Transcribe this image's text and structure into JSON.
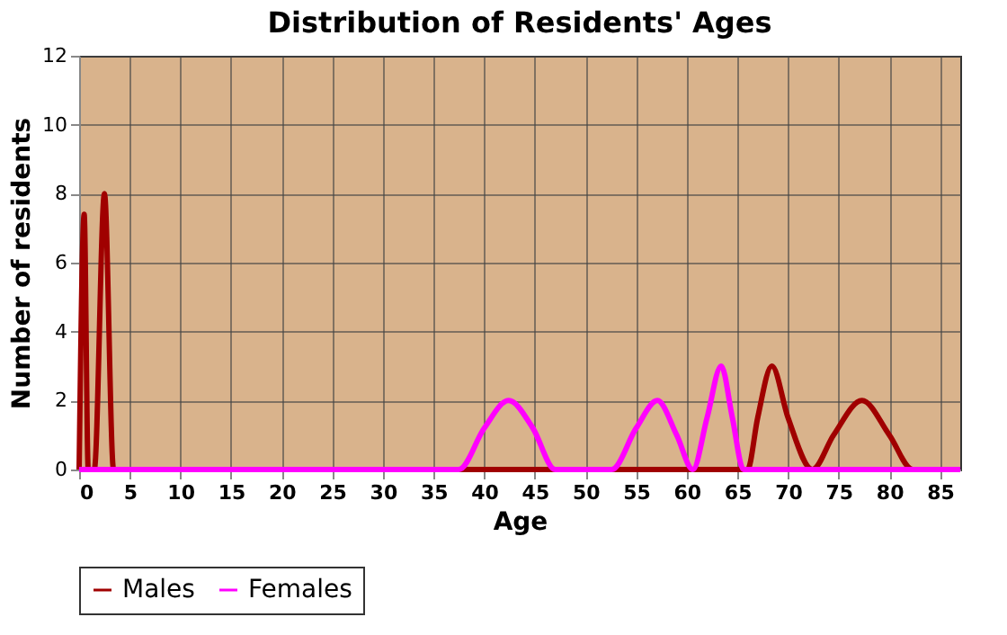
{
  "chart_data": {
    "type": "line",
    "title": "Distribution of Residents' Ages",
    "xlabel": "Age",
    "ylabel": "Number of residents",
    "xlim": [
      0,
      87
    ],
    "xticks": [
      0,
      5,
      10,
      15,
      20,
      25,
      30,
      35,
      40,
      45,
      50,
      55,
      60,
      65,
      70,
      75,
      80,
      85
    ],
    "ylim": [
      0,
      12
    ],
    "yticks": [
      0,
      2,
      4,
      6,
      8,
      10,
      12
    ],
    "grid": true,
    "legend": "bottom",
    "marker": "none",
    "line_style": "solid",
    "series": [
      {
        "name": "Males",
        "color": "#a00000",
        "x": [
          0,
          0.5,
          0.9,
          1.5,
          2.5,
          3.4,
          4,
          66,
          67,
          68.4,
          70,
          72.4,
          74.5,
          77.3,
          80,
          82.3,
          87
        ],
        "values": [
          0,
          7.4,
          0,
          0,
          8,
          0,
          0,
          0,
          1.5,
          3,
          1.5,
          0,
          1,
          2,
          1,
          0,
          0
        ]
      },
      {
        "name": "Females",
        "color": "#ff00ff",
        "x": [
          0,
          37.5,
          40,
          42.4,
          44.8,
          47,
          52.6,
          55,
          57.1,
          59,
          60.6,
          62,
          63.4,
          64.5,
          65.6,
          87
        ],
        "values": [
          0,
          0,
          1.2,
          2,
          1.2,
          0,
          0,
          1.2,
          2,
          1,
          0,
          1.5,
          3,
          1.5,
          0,
          0
        ]
      }
    ]
  }
}
